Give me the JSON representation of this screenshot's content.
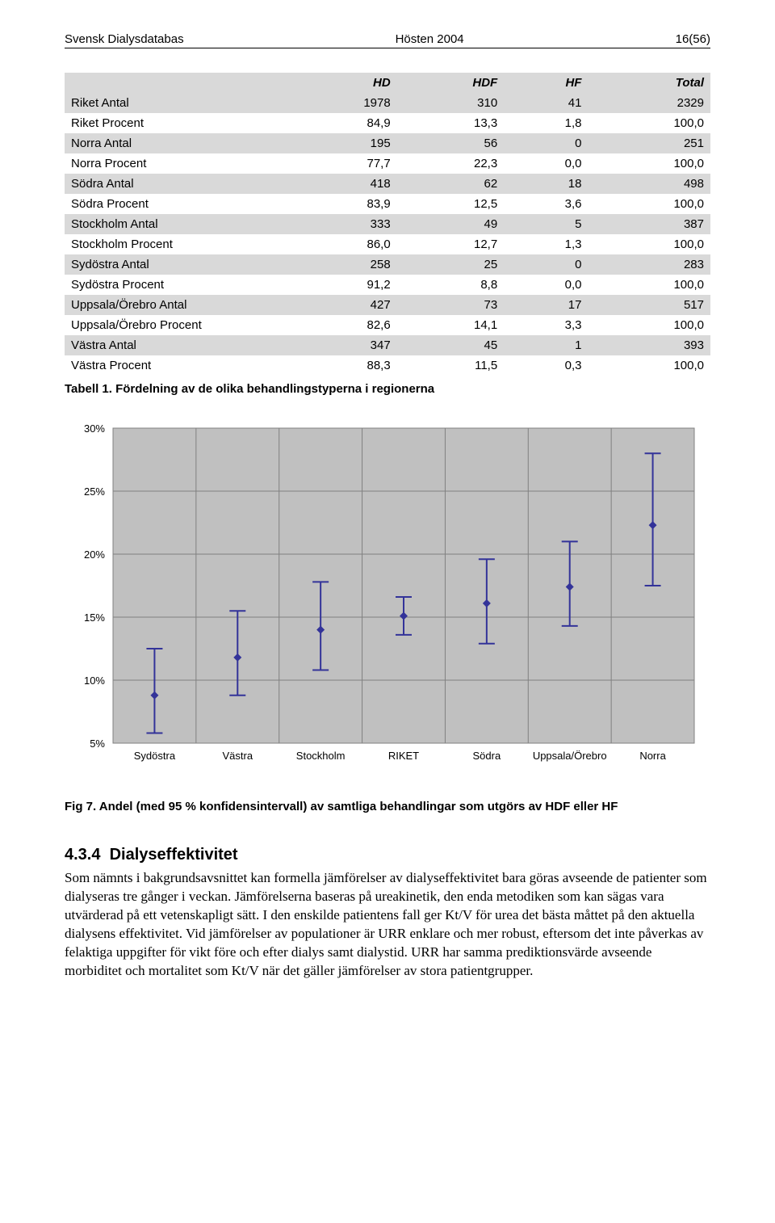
{
  "header": {
    "left": "Svensk Dialysdatabas",
    "center": "Hösten 2004",
    "right": "16(56)"
  },
  "table": {
    "columns": [
      "",
      "HD",
      "HDF",
      "HF",
      "Total"
    ],
    "rows": [
      {
        "label": "Riket Antal",
        "values": [
          "1978",
          "310",
          "41",
          "2329"
        ],
        "shade": true
      },
      {
        "label": "Riket Procent",
        "values": [
          "84,9",
          "13,3",
          "1,8",
          "100,0"
        ],
        "shade": false
      },
      {
        "label": "Norra Antal",
        "values": [
          "195",
          "56",
          "0",
          "251"
        ],
        "shade": true
      },
      {
        "label": "Norra Procent",
        "values": [
          "77,7",
          "22,3",
          "0,0",
          "100,0"
        ],
        "shade": false
      },
      {
        "label": "Södra Antal",
        "values": [
          "418",
          "62",
          "18",
          "498"
        ],
        "shade": true
      },
      {
        "label": "Södra Procent",
        "values": [
          "83,9",
          "12,5",
          "3,6",
          "100,0"
        ],
        "shade": false
      },
      {
        "label": "Stockholm Antal",
        "values": [
          "333",
          "49",
          "5",
          "387"
        ],
        "shade": true
      },
      {
        "label": "Stockholm Procent",
        "values": [
          "86,0",
          "12,7",
          "1,3",
          "100,0"
        ],
        "shade": false
      },
      {
        "label": "Sydöstra Antal",
        "values": [
          "258",
          "25",
          "0",
          "283"
        ],
        "shade": true
      },
      {
        "label": "Sydöstra Procent",
        "values": [
          "91,2",
          "8,8",
          "0,0",
          "100,0"
        ],
        "shade": false
      },
      {
        "label": "Uppsala/Örebro Antal",
        "values": [
          "427",
          "73",
          "17",
          "517"
        ],
        "shade": true
      },
      {
        "label": "Uppsala/Örebro Procent",
        "values": [
          "82,6",
          "14,1",
          "3,3",
          "100,0"
        ],
        "shade": false
      },
      {
        "label": "Västra Antal",
        "values": [
          "347",
          "45",
          "1",
          "393"
        ],
        "shade": true
      },
      {
        "label": "Västra Procent",
        "values": [
          "88,3",
          "11,5",
          "0,3",
          "100,0"
        ],
        "shade": false
      }
    ],
    "caption": "Tabell 1. Fördelning av de olika behandlingstyperna i regionerna"
  },
  "chart": {
    "type": "error-bar",
    "ylim": [
      5,
      30
    ],
    "ytick_step": 5,
    "yticks": [
      "5%",
      "10%",
      "15%",
      "20%",
      "25%",
      "30%"
    ],
    "categories": [
      "Sydöstra",
      "Västra",
      "Stockholm",
      "RIKET",
      "Södra",
      "Uppsala/Örebro",
      "Norra"
    ],
    "points": [
      {
        "mean": 8.8,
        "lo": 5.8,
        "hi": 12.5
      },
      {
        "mean": 11.8,
        "lo": 8.8,
        "hi": 15.5
      },
      {
        "mean": 14.0,
        "lo": 10.8,
        "hi": 17.8
      },
      {
        "mean": 15.1,
        "lo": 13.6,
        "hi": 16.6
      },
      {
        "mean": 16.1,
        "lo": 12.9,
        "hi": 19.6
      },
      {
        "mean": 17.4,
        "lo": 14.3,
        "hi": 21.0
      },
      {
        "mean": 22.3,
        "lo": 17.5,
        "hi": 28.0
      }
    ],
    "series_color": "#333399",
    "grid_color": "#808080",
    "plot_bg": "#c0c0c0",
    "line_width": 2,
    "marker_size": 10,
    "label_fontsize": 13
  },
  "fig_caption": "Fig 7. Andel (med 95 % konfidensintervall) av samtliga behandlingar som utgörs av HDF eller HF",
  "section": {
    "number": "4.3.4",
    "title": "Dialyseffektivitet",
    "body": "Som nämnts i bakgrundsavsnittet kan formella jämförelser av dialyseffektivitet bara göras avseende de patienter som dialyseras tre gånger i veckan. Jämförelserna baseras på ureakinetik, den enda metodiken som kan sägas vara utvärderad på ett vetenskapligt sätt. I den enskilde patientens fall ger Kt/V för urea det bästa måttet på den aktuella dialysens effektivitet. Vid jämförelser av populationer är URR enklare och mer robust, eftersom det inte påverkas av felaktiga uppgifter för vikt före och efter dialys samt dialystid. URR har samma prediktionsvärde avseende morbiditet och mortalitet som Kt/V när det gäller jämförelser av stora patientgrupper."
  }
}
